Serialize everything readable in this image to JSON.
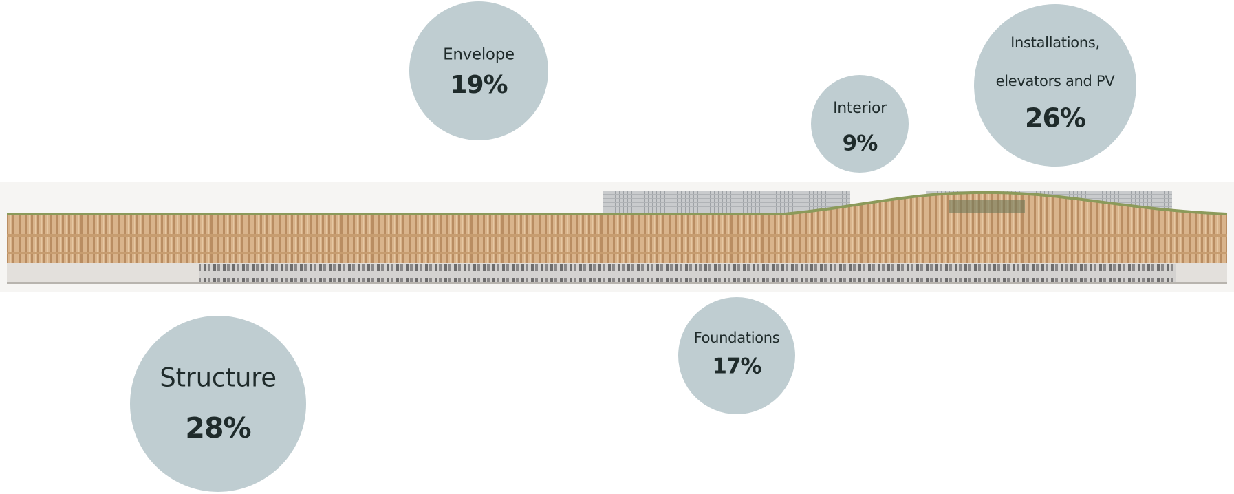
{
  "items": [
    {
      "label_lines": [
        "Envelope"
      ],
      "value": "19%"
    },
    {
      "label_lines": [
        "Interior"
      ],
      "value": "9%"
    },
    {
      "label_lines": [
        "Installations,",
        "elevators and PV"
      ],
      "value": "26%"
    },
    {
      "label_lines": [
        "Foundations"
      ],
      "value": "17%"
    },
    {
      "label_lines": [
        "Structure"
      ],
      "value": "28%"
    }
  ]
}
